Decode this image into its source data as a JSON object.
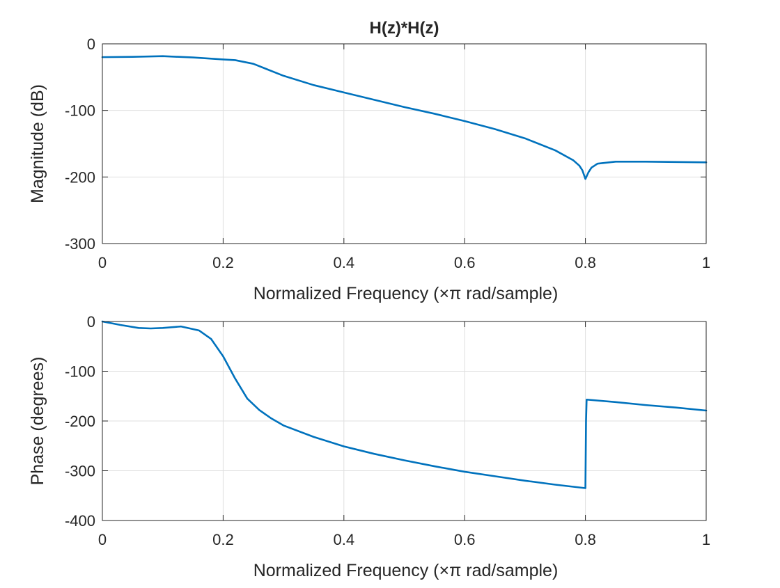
{
  "figure": {
    "title": "H(z)*H(z)"
  },
  "chart_data": [
    {
      "type": "line",
      "title": "H(z)*H(z)",
      "xlabel": "Normalized Frequency  (×π rad/sample)",
      "ylabel": "Magnitude (dB)",
      "xlim": [
        0,
        1
      ],
      "ylim": [
        -300,
        0
      ],
      "xticks": [
        0,
        0.2,
        0.4,
        0.6,
        0.8,
        1
      ],
      "xtick_labels": [
        "0",
        "0.2",
        "0.4",
        "0.6",
        "0.8",
        "1"
      ],
      "yticks": [
        -300,
        -200,
        -100,
        0
      ],
      "ytick_labels": [
        "-300",
        "-200",
        "-100",
        "0"
      ],
      "grid": true,
      "line_color": "#0072BD",
      "series": [
        {
          "x": [
            0,
            0.05,
            0.1,
            0.15,
            0.2,
            0.22,
            0.25,
            0.3,
            0.35,
            0.4,
            0.45,
            0.5,
            0.55,
            0.6,
            0.65,
            0.7,
            0.75,
            0.78,
            0.79,
            0.795,
            0.8,
            0.805,
            0.81,
            0.82,
            0.85,
            0.9,
            0.95,
            1.0
          ],
          "values": [
            -20,
            -19.5,
            -18.5,
            -20.5,
            -23.5,
            -24.5,
            -30,
            -48,
            -62,
            -73,
            -84,
            -95,
            -105,
            -116,
            -128,
            -142,
            -160,
            -175,
            -183,
            -190,
            -203,
            -193,
            -186,
            -180,
            -177,
            -177,
            -177.5,
            -178
          ]
        }
      ]
    },
    {
      "type": "line",
      "title": "",
      "xlabel": "Normalized Frequency  (×π rad/sample)",
      "ylabel": "Phase (degrees)",
      "xlim": [
        0,
        1
      ],
      "ylim": [
        -400,
        0
      ],
      "xticks": [
        0,
        0.2,
        0.4,
        0.6,
        0.8,
        1
      ],
      "xtick_labels": [
        "0",
        "0.2",
        "0.4",
        "0.6",
        "0.8",
        "1"
      ],
      "yticks": [
        -400,
        -300,
        -200,
        -100,
        0
      ],
      "ytick_labels": [
        "-400",
        "-300",
        "-200",
        "-100",
        "0"
      ],
      "grid": true,
      "line_color": "#0072BD",
      "series": [
        {
          "x": [
            0,
            0.03,
            0.06,
            0.08,
            0.1,
            0.13,
            0.16,
            0.18,
            0.2,
            0.22,
            0.24,
            0.26,
            0.28,
            0.3,
            0.35,
            0.4,
            0.45,
            0.5,
            0.55,
            0.6,
            0.65,
            0.7,
            0.75,
            0.8,
            0.801,
            0.802,
            0.85,
            0.9,
            0.95,
            1.0
          ],
          "values": [
            0,
            -7,
            -13,
            -14,
            -13,
            -10,
            -18,
            -35,
            -70,
            -115,
            -155,
            -178,
            -195,
            -209,
            -232,
            -251,
            -266,
            -279,
            -291,
            -302,
            -311,
            -320,
            -328,
            -335,
            -200,
            -157,
            -162,
            -168,
            -173,
            -179
          ]
        }
      ]
    }
  ]
}
